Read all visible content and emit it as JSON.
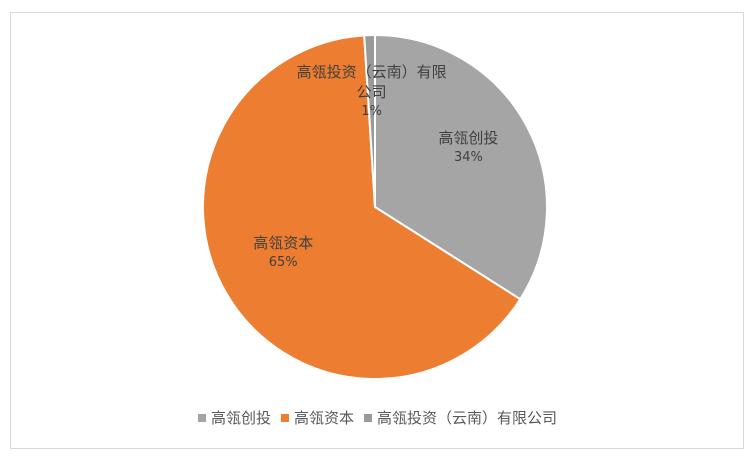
{
  "chart_data": {
    "type": "pie",
    "categories": [
      "高瓴创投",
      "高瓴资本",
      "高瓴投资（云南）有限公司"
    ],
    "values": [
      34,
      65,
      1
    ],
    "value_labels": [
      "34%",
      "65%",
      "1%"
    ],
    "colors": [
      "#a5a5a5",
      "#ed7d31",
      "#9a9a9a"
    ],
    "legend": "bottom"
  }
}
